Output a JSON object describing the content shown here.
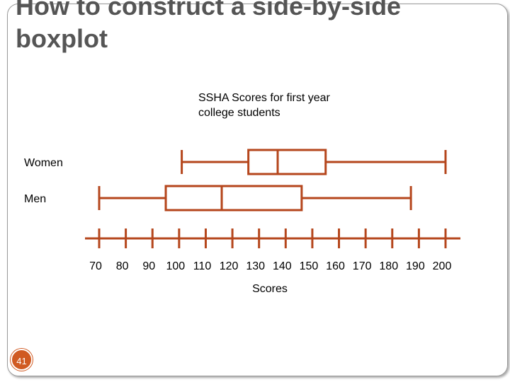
{
  "slide": {
    "title": "How to construct a side-by-side boxplot",
    "page_number": "41"
  },
  "colors": {
    "accent": "#b5461c",
    "badge": "#d05a22",
    "title_text": "#555555"
  },
  "chart_data": {
    "type": "boxplot",
    "title": "SSHA Scores for first year college students",
    "xlabel": "Scores",
    "ylabel": "",
    "xlim": [
      70,
      200
    ],
    "x_ticks": [
      70,
      80,
      90,
      100,
      110,
      120,
      130,
      140,
      150,
      160,
      170,
      180,
      190,
      200
    ],
    "grid": false,
    "series": [
      {
        "name": "Women",
        "min": 101,
        "q1": 126,
        "median": 137,
        "q3": 155,
        "max": 200
      },
      {
        "name": "Men",
        "min": 70,
        "q1": 95,
        "median": 116,
        "q3": 146,
        "max": 187
      }
    ]
  }
}
